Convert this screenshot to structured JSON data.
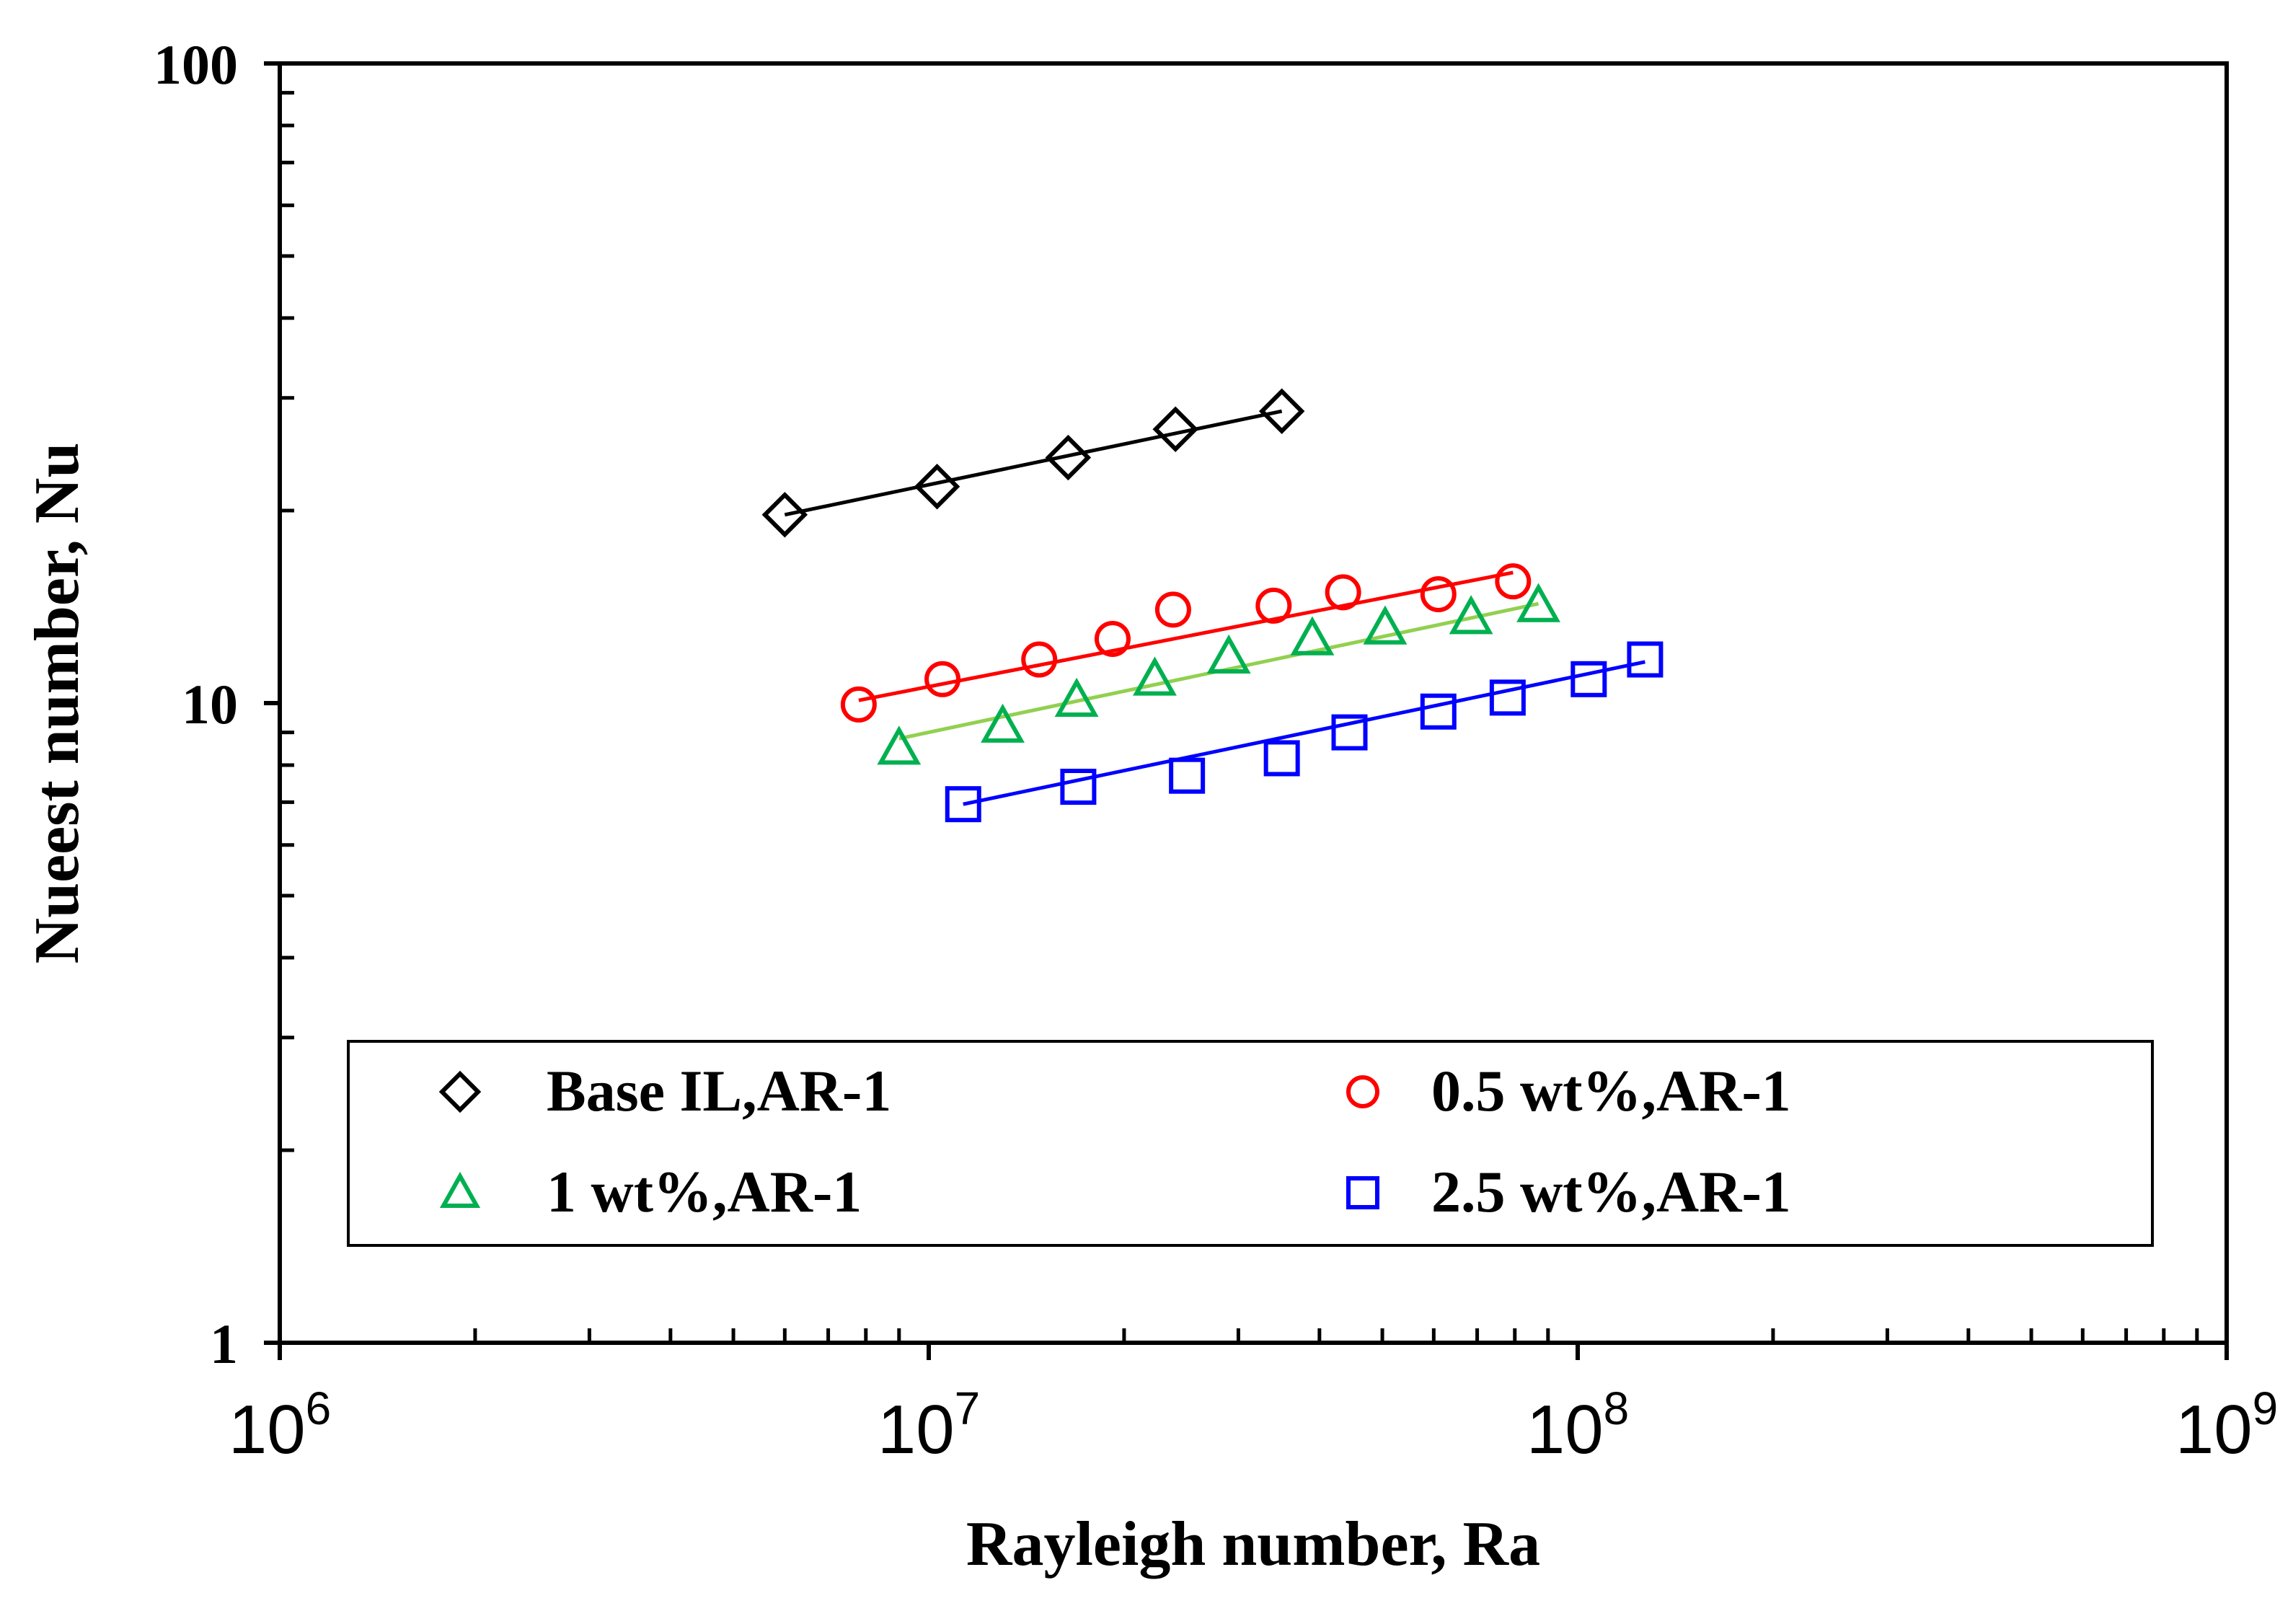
{
  "chart_data": {
    "type": "scatter",
    "title": "",
    "xlabel": "Rayleigh number, Ra",
    "ylabel": "Nueest number, Nu",
    "xscale": "log",
    "yscale": "log",
    "xlim": [
      1000000,
      1000000000
    ],
    "ylim": [
      1,
      100
    ],
    "x_ticks": [
      {
        "base": "10",
        "exp": "6"
      },
      {
        "base": "10",
        "exp": "7"
      },
      {
        "base": "10",
        "exp": "8"
      },
      {
        "base": "10",
        "exp": "9"
      }
    ],
    "y_ticks": [
      "1",
      "10",
      "100"
    ],
    "legend_position": "bottom",
    "series": [
      {
        "name": "Base IL,AR-1",
        "marker": "diamond",
        "color": "#000000",
        "line_color": "#000000",
        "x": [
          6000000,
          10300000,
          16400000,
          24000000,
          35000000
        ],
        "y": [
          19.7,
          21.8,
          24.2,
          26.8,
          28.6
        ],
        "fit_x": [
          6000000,
          35000000
        ],
        "fit_y": [
          19.7,
          28.6
        ]
      },
      {
        "name": "0.5 wt%,AR-1",
        "marker": "circle",
        "color": "#ff0000",
        "line_color": "#ff0000",
        "x": [
          7800000,
          10500000,
          14800000,
          19200000,
          23800000,
          34000000,
          43500000,
          61000000,
          79500000
        ],
        "y": [
          9.95,
          10.9,
          11.7,
          12.6,
          14.0,
          14.2,
          14.9,
          14.8,
          15.5
        ],
        "fit_x": [
          7800000,
          79500000
        ],
        "fit_y": [
          10.1,
          16.0
        ]
      },
      {
        "name": "1 wt%,AR-1",
        "marker": "triangle",
        "color": "#00b050",
        "line_color": "#92d050",
        "x": [
          9000000,
          13000000,
          16900000,
          22300000,
          29000000,
          39000000,
          50500000,
          68500000,
          87000000
        ],
        "y": [
          8.5,
          9.2,
          10.1,
          10.9,
          11.8,
          12.6,
          13.1,
          13.6,
          14.2
        ],
        "fit_x": [
          9000000,
          87000000
        ],
        "fit_y": [
          8.8,
          14.3
        ]
      },
      {
        "name": "2.5 wt%,AR-1",
        "marker": "square",
        "color": "#0000ff",
        "line_color": "#0000ff",
        "x": [
          11300000,
          17000000,
          25000000,
          35000000,
          44500000,
          61000000,
          78000000,
          104000000,
          127000000
        ],
        "y": [
          6.95,
          7.4,
          7.7,
          8.2,
          9.0,
          9.7,
          10.2,
          10.9,
          11.7
        ],
        "fit_x": [
          11300000,
          127000000
        ],
        "fit_y": [
          6.95,
          11.6
        ]
      }
    ]
  }
}
